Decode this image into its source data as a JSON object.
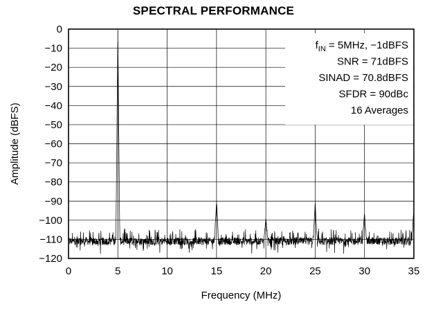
{
  "chart_data": {
    "type": "line",
    "title": "SPECTRAL PERFORMANCE",
    "xlabel": "Frequency (MHz)",
    "ylabel": "Amplitude (dBFS)",
    "xlim": [
      0,
      35
    ],
    "ylim": [
      -120,
      0
    ],
    "x_ticks": [
      "0",
      "5",
      "10",
      "15",
      "20",
      "25",
      "30",
      "35"
    ],
    "y_ticks": [
      "0",
      "−10",
      "−20",
      "−30",
      "−40",
      "−50",
      "−60",
      "−70",
      "−80",
      "−90",
      "−100",
      "−110",
      "−120"
    ],
    "grid": true,
    "noise_floor_dbfs": -110,
    "fundamental": {
      "x": 5,
      "y": -1
    },
    "spurs": [
      {
        "x": 5,
        "y": -97
      },
      {
        "x": 15,
        "y": -90
      },
      {
        "x": 20,
        "y": -99
      },
      {
        "x": 25,
        "y": -91
      },
      {
        "x": 30,
        "y": -97
      },
      {
        "x": 35,
        "y": -94
      }
    ],
    "annotations": [
      {
        "prefix": "f",
        "sub": "IN",
        "suffix": " = 5MHz, −1dBFS"
      },
      {
        "text": "SNR = 71dBFS"
      },
      {
        "text": "SINAD = 70.8dBFS"
      },
      {
        "text": "SFDR = 90dBc"
      },
      {
        "text": "16 Averages"
      }
    ],
    "trace_color": "#000000"
  }
}
